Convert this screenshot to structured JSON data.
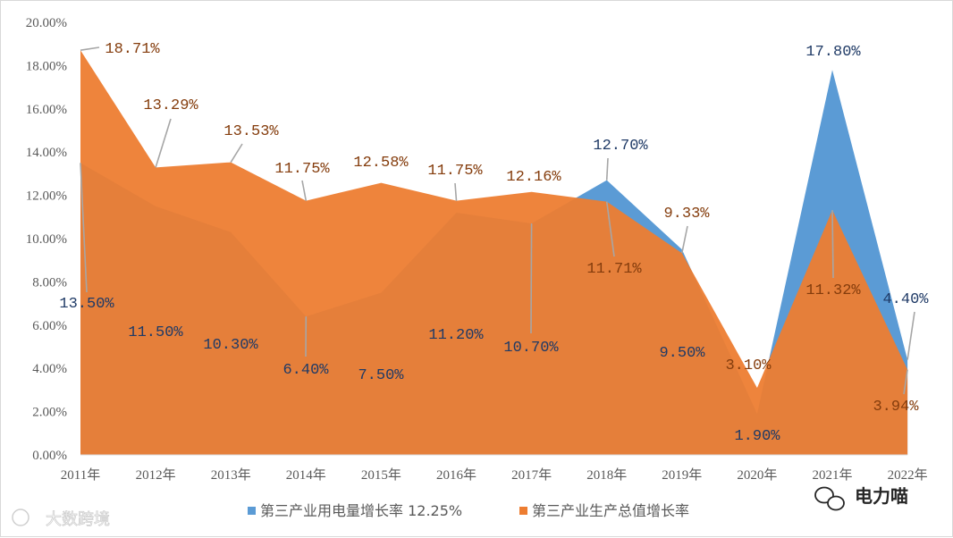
{
  "chart_data": {
    "type": "area",
    "categories": [
      "2011年",
      "2012年",
      "2013年",
      "2014年",
      "2015年",
      "2016年",
      "2017年",
      "2018年",
      "2019年",
      "2020年",
      "2021年",
      "2022年"
    ],
    "series": [
      {
        "name": "第三产业用电量增长率 12.25%",
        "color": "#5b9bd5",
        "values": [
          13.5,
          11.5,
          10.3,
          6.4,
          7.5,
          11.2,
          10.7,
          12.7,
          9.5,
          1.9,
          17.8,
          4.4
        ],
        "labels": [
          "13.50%",
          "11.50%",
          "10.30%",
          "6.40%",
          "7.50%",
          "11.20%",
          "10.70%",
          "12.70%",
          "9.50%",
          "1.90%",
          "17.80%",
          "4.40%"
        ]
      },
      {
        "name": "第三产业生产总值增长率",
        "color": "#ed7d31",
        "values": [
          18.71,
          13.29,
          13.53,
          11.75,
          12.58,
          11.75,
          12.16,
          11.71,
          9.33,
          3.1,
          11.32,
          3.94
        ],
        "labels": [
          "18.71%",
          "13.29%",
          "13.53%",
          "11.75%",
          "12.58%",
          "11.75%",
          "12.16%",
          "11.71%",
          "9.33%",
          "3.10%",
          "11.32%",
          "3.94%"
        ]
      }
    ],
    "ylim": [
      0,
      20
    ],
    "yticks": [
      "0.00%",
      "2.00%",
      "4.00%",
      "6.00%",
      "8.00%",
      "10.00%",
      "12.00%",
      "14.00%",
      "16.00%",
      "18.00%",
      "20.00%"
    ],
    "grid": false,
    "legend_position": "bottom"
  },
  "brand": {
    "name": "电力喵",
    "watermark": "大数跨境"
  }
}
